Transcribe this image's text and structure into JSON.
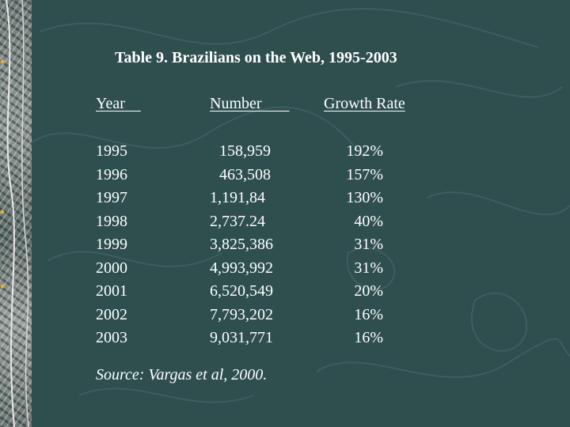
{
  "title": "Table 9.  Brazilians on the Web, 1995-2003",
  "headers": {
    "year": "Year    ",
    "number": "Number       ",
    "growth": "Growth Rate"
  },
  "rows": [
    {
      "year": "1995",
      "number": "158,959",
      "growth": "192%"
    },
    {
      "year": "1996",
      "number": "463,508",
      "growth": "157%"
    },
    {
      "year": "1997",
      "number": "1,191,84",
      "growth": "130%"
    },
    {
      "year": "1998",
      "number": "2,737.24",
      "growth": "40%"
    },
    {
      "year": "1999",
      "number": "3,825,386",
      "growth": "31%"
    },
    {
      "year": "2000",
      "number": "4,993,992",
      "growth": "31%"
    },
    {
      "year": "2001",
      "number": "6,520,549",
      "growth": "20%"
    },
    {
      "year": "2002",
      "number": "7,793,202",
      "growth": "16%"
    },
    {
      "year": "2003",
      "number": "9,031,771",
      "growth": "16%"
    }
  ],
  "source": "Source: Vargas et al, 2000.",
  "colors": {
    "background": "#2f4f4f",
    "text": "#ffffff"
  }
}
